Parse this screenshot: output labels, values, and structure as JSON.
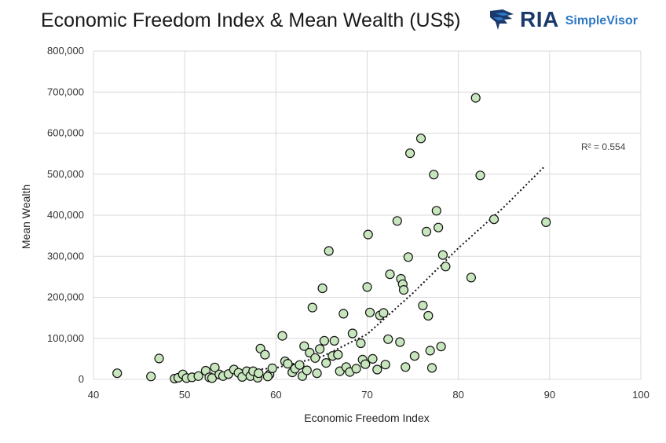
{
  "header": {
    "title": "Economic Freedom Index & Mean Wealth (US$)",
    "logo_text": "RIA",
    "logo_subtext": "SimpleVisor"
  },
  "colors": {
    "marker_fill": "#c8e6bd",
    "marker_stroke": "#111111",
    "grid": "#d9d9d9",
    "trendline": "#111111",
    "logo_primary": "#1b3a6b",
    "logo_secondary": "#2e78c4"
  },
  "chart_data": {
    "type": "scatter",
    "title": "Economic Freedom Index & Mean Wealth (US$)",
    "xlabel": "Economic Freedom Index",
    "ylabel": "Mean Wealth",
    "xlim": [
      40,
      100
    ],
    "ylim": [
      0,
      800000
    ],
    "x_ticks": [
      40,
      50,
      60,
      70,
      80,
      90,
      100
    ],
    "y_ticks": [
      0,
      100000,
      200000,
      300000,
      400000,
      500000,
      600000,
      700000,
      800000
    ],
    "x_tick_labels": [
      "40",
      "50",
      "60",
      "70",
      "80",
      "90",
      "100"
    ],
    "y_tick_labels": [
      "0",
      "100,000",
      "200,000",
      "300,000",
      "400,000",
      "500,000",
      "600,000",
      "700,000",
      "800,000"
    ],
    "grid": true,
    "legend": "none",
    "points": [
      [
        42.6,
        15000
      ],
      [
        46.3,
        7000
      ],
      [
        47.2,
        51000
      ],
      [
        48.9,
        2000
      ],
      [
        49.3,
        4000
      ],
      [
        49.8,
        12000
      ],
      [
        50.2,
        3000
      ],
      [
        50.8,
        5000
      ],
      [
        51.5,
        8000
      ],
      [
        52.3,
        21000
      ],
      [
        52.7,
        5000
      ],
      [
        53.3,
        29000
      ],
      [
        53.0,
        3000
      ],
      [
        53.8,
        12000
      ],
      [
        54.2,
        8000
      ],
      [
        54.8,
        13000
      ],
      [
        55.4,
        24000
      ],
      [
        55.9,
        16000
      ],
      [
        56.3,
        6000
      ],
      [
        56.8,
        20000
      ],
      [
        57.2,
        8000
      ],
      [
        57.5,
        20000
      ],
      [
        58.0,
        4000
      ],
      [
        58.1,
        15000
      ],
      [
        58.3,
        75000
      ],
      [
        58.8,
        60000
      ],
      [
        59.3,
        12000
      ],
      [
        59.6,
        27000
      ],
      [
        59.1,
        7000
      ],
      [
        60.7,
        106000
      ],
      [
        61.0,
        44000
      ],
      [
        61.3,
        38000
      ],
      [
        61.8,
        17000
      ],
      [
        62.1,
        26000
      ],
      [
        62.6,
        35000
      ],
      [
        62.9,
        8000
      ],
      [
        63.1,
        81000
      ],
      [
        63.4,
        22000
      ],
      [
        63.7,
        65000
      ],
      [
        64.0,
        175000
      ],
      [
        64.3,
        52000
      ],
      [
        64.5,
        15000
      ],
      [
        64.8,
        74000
      ],
      [
        65.1,
        222000
      ],
      [
        65.3,
        94000
      ],
      [
        65.5,
        40000
      ],
      [
        65.8,
        313000
      ],
      [
        66.2,
        57000
      ],
      [
        66.4,
        94000
      ],
      [
        66.8,
        60000
      ],
      [
        67.0,
        20000
      ],
      [
        67.4,
        160000
      ],
      [
        67.7,
        30000
      ],
      [
        68.1,
        18000
      ],
      [
        68.4,
        112000
      ],
      [
        68.8,
        26000
      ],
      [
        69.3,
        88000
      ],
      [
        69.5,
        48000
      ],
      [
        69.8,
        37000
      ],
      [
        70.0,
        225000
      ],
      [
        70.1,
        353000
      ],
      [
        70.3,
        163000
      ],
      [
        70.6,
        50000
      ],
      [
        71.1,
        24000
      ],
      [
        71.4,
        156000
      ],
      [
        71.8,
        162000
      ],
      [
        72.0,
        36000
      ],
      [
        72.3,
        98000
      ],
      [
        72.5,
        256000
      ],
      [
        73.3,
        386000
      ],
      [
        73.6,
        91000
      ],
      [
        73.7,
        245000
      ],
      [
        73.9,
        232000
      ],
      [
        74.0,
        218000
      ],
      [
        74.2,
        30000
      ],
      [
        74.5,
        298000
      ],
      [
        74.7,
        551000
      ],
      [
        75.2,
        57000
      ],
      [
        75.9,
        587000
      ],
      [
        76.1,
        180000
      ],
      [
        76.5,
        360000
      ],
      [
        76.7,
        155000
      ],
      [
        76.9,
        70000
      ],
      [
        77.1,
        28000
      ],
      [
        77.3,
        499000
      ],
      [
        77.6,
        411000
      ],
      [
        77.8,
        370000
      ],
      [
        78.1,
        80000
      ],
      [
        78.3,
        303000
      ],
      [
        78.6,
        275000
      ],
      [
        81.4,
        248000
      ],
      [
        81.9,
        686000
      ],
      [
        82.4,
        497000
      ],
      [
        83.9,
        390000
      ],
      [
        89.6,
        383000
      ]
    ],
    "trendline": {
      "type": "exponential",
      "r_squared_label": "R² = 0.554",
      "x_range": [
        52,
        89.5
      ],
      "points": [
        [
          52,
          13000
        ],
        [
          60,
          28000
        ],
        [
          65,
          55000
        ],
        [
          70,
          110000
        ],
        [
          75,
          210000
        ],
        [
          80,
          320000
        ],
        [
          85,
          420000
        ],
        [
          89.5,
          520000
        ]
      ]
    }
  }
}
